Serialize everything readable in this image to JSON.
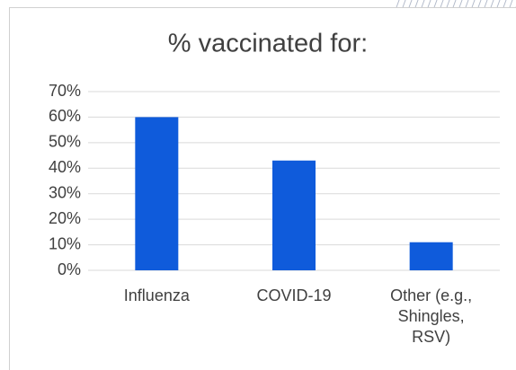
{
  "chart_data": {
    "type": "bar",
    "title": "% vaccinated for:",
    "categories": [
      "Influenza",
      "COVID-19",
      "Other (e.g., Shingles, RSV)"
    ],
    "values": [
      60,
      43,
      11
    ],
    "color": "#0f5bdb",
    "ylim": [
      0,
      70
    ],
    "yticks": [
      {
        "value": 0,
        "label": "0%"
      },
      {
        "value": 10,
        "label": "10%"
      },
      {
        "value": 20,
        "label": "20%"
      },
      {
        "value": 30,
        "label": "30%"
      },
      {
        "value": 40,
        "label": "40%"
      },
      {
        "value": 50,
        "label": "50%"
      },
      {
        "value": 60,
        "label": "60%"
      },
      {
        "value": 70,
        "label": "70%"
      }
    ],
    "grid": true
  }
}
